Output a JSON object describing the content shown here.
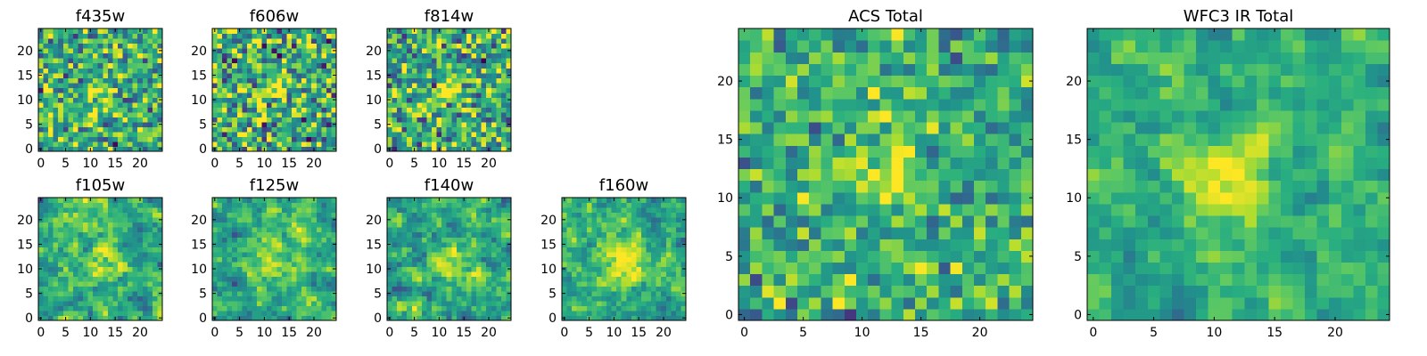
{
  "chart_data": [
    {
      "type": "heatmap",
      "title": "f435w",
      "xlim": [
        -0.5,
        24.5
      ],
      "ylim": [
        -0.5,
        24.5
      ],
      "xticks": [
        0,
        5,
        10,
        15,
        20
      ],
      "yticks": [
        0,
        5,
        10,
        15,
        20
      ],
      "xtick_labels": [
        "0",
        "5",
        "10",
        "15",
        "20"
      ],
      "ytick_labels": [
        "0",
        "5",
        "10",
        "15",
        "20"
      ],
      "grid_size": [
        25,
        25
      ],
      "source_peak": [
        12,
        12
      ],
      "colormap": "viridis",
      "seed": 11,
      "noise": 0.22,
      "smooth": 0,
      "peak": 0.25,
      "width": 2.0
    },
    {
      "type": "heatmap",
      "title": "f606w",
      "xlim": [
        -0.5,
        24.5
      ],
      "ylim": [
        -0.5,
        24.5
      ],
      "xticks": [
        0,
        5,
        10,
        15,
        20
      ],
      "yticks": [
        0,
        5,
        10,
        15,
        20
      ],
      "xtick_labels": [
        "0",
        "5",
        "10",
        "15",
        "20"
      ],
      "ytick_labels": [
        "0",
        "5",
        "10",
        "15",
        "20"
      ],
      "grid_size": [
        25,
        25
      ],
      "source_peak": [
        12,
        12
      ],
      "colormap": "viridis",
      "seed": 23,
      "noise": 0.26,
      "smooth": 0,
      "peak": 0.3,
      "width": 2.0
    },
    {
      "type": "heatmap",
      "title": "f814w",
      "xlim": [
        -0.5,
        24.5
      ],
      "ylim": [
        -0.5,
        24.5
      ],
      "xticks": [
        0,
        5,
        10,
        15,
        20
      ],
      "yticks": [
        0,
        5,
        10,
        15,
        20
      ],
      "xtick_labels": [
        "0",
        "5",
        "10",
        "15",
        "20"
      ],
      "ytick_labels": [
        "0",
        "5",
        "10",
        "15",
        "20"
      ],
      "grid_size": [
        25,
        25
      ],
      "source_peak": [
        12,
        12
      ],
      "colormap": "viridis",
      "seed": 37,
      "noise": 0.24,
      "smooth": 0,
      "peak": 0.4,
      "width": 1.8
    },
    {
      "type": "heatmap",
      "title": "f105w",
      "xlim": [
        -0.5,
        24.5
      ],
      "ylim": [
        -0.5,
        24.5
      ],
      "xticks": [
        0,
        5,
        10,
        15,
        20
      ],
      "yticks": [
        0,
        5,
        10,
        15,
        20
      ],
      "xtick_labels": [
        "0",
        "5",
        "10",
        "15",
        "20"
      ],
      "ytick_labels": [
        "0",
        "5",
        "10",
        "15",
        "20"
      ],
      "grid_size": [
        25,
        25
      ],
      "source_peak": [
        12,
        12
      ],
      "colormap": "viridis",
      "seed": 41,
      "noise": 0.28,
      "smooth": 1,
      "peak": 0.3,
      "width": 2.2
    },
    {
      "type": "heatmap",
      "title": "f125w",
      "xlim": [
        -0.5,
        24.5
      ],
      "ylim": [
        -0.5,
        24.5
      ],
      "xticks": [
        0,
        5,
        10,
        15,
        20
      ],
      "yticks": [
        0,
        5,
        10,
        15,
        20
      ],
      "xtick_labels": [
        "0",
        "5",
        "10",
        "15",
        "20"
      ],
      "ytick_labels": [
        "0",
        "5",
        "10",
        "15",
        "20"
      ],
      "grid_size": [
        25,
        25
      ],
      "source_peak": [
        12,
        12
      ],
      "colormap": "viridis",
      "seed": 53,
      "noise": 0.26,
      "smooth": 1,
      "peak": 0.3,
      "width": 3.0
    },
    {
      "type": "heatmap",
      "title": "f140w",
      "xlim": [
        -0.5,
        24.5
      ],
      "ylim": [
        -0.5,
        24.5
      ],
      "xticks": [
        0,
        5,
        10,
        15,
        20
      ],
      "yticks": [
        0,
        5,
        10,
        15,
        20
      ],
      "xtick_labels": [
        "0",
        "5",
        "10",
        "15",
        "20"
      ],
      "ytick_labels": [
        "0",
        "5",
        "10",
        "15",
        "20"
      ],
      "grid_size": [
        25,
        25
      ],
      "source_peak": [
        12,
        12
      ],
      "colormap": "viridis",
      "seed": 67,
      "noise": 0.28,
      "smooth": 1,
      "peak": 0.35,
      "width": 2.4
    },
    {
      "type": "heatmap",
      "title": "f160w",
      "xlim": [
        -0.5,
        24.5
      ],
      "ylim": [
        -0.5,
        24.5
      ],
      "xticks": [
        0,
        5,
        10,
        15,
        20
      ],
      "yticks": [
        0,
        5,
        10,
        15,
        20
      ],
      "xtick_labels": [
        "0",
        "5",
        "10",
        "15",
        "20"
      ],
      "ytick_labels": [
        "0",
        "5",
        "10",
        "15",
        "20"
      ],
      "grid_size": [
        25,
        25
      ],
      "source_peak": [
        12,
        11
      ],
      "colormap": "viridis",
      "seed": 79,
      "noise": 0.26,
      "smooth": 1,
      "peak": 0.4,
      "width": 3.0
    },
    {
      "type": "heatmap",
      "title": "ACS Total",
      "xlim": [
        -0.5,
        24.5
      ],
      "ylim": [
        -0.5,
        24.5
      ],
      "xticks": [
        0,
        5,
        10,
        15,
        20
      ],
      "yticks": [
        0,
        5,
        10,
        15,
        20
      ],
      "xtick_labels": [
        "0",
        "5",
        "10",
        "15",
        "20"
      ],
      "ytick_labels": [
        "0",
        "5",
        "10",
        "15",
        "20"
      ],
      "grid_size": [
        25,
        25
      ],
      "source_peak": [
        12,
        12
      ],
      "colormap": "viridis",
      "seed": 97,
      "noise": 0.16,
      "smooth": 0,
      "peak": 0.45,
      "width": 1.6
    },
    {
      "type": "heatmap",
      "title": "WFC3 IR Total",
      "xlim": [
        -0.5,
        24.5
      ],
      "ylim": [
        -0.5,
        24.5
      ],
      "xticks": [
        0,
        5,
        10,
        15,
        20
      ],
      "yticks": [
        0,
        5,
        10,
        15,
        20
      ],
      "xtick_labels": [
        "0",
        "5",
        "10",
        "15",
        "20"
      ],
      "ytick_labels": [
        "0",
        "5",
        "10",
        "15",
        "20"
      ],
      "grid_size": [
        25,
        25
      ],
      "source_peak": [
        12,
        12
      ],
      "colormap": "viridis",
      "seed": 113,
      "noise": 0.2,
      "smooth": 1,
      "peak": 0.45,
      "width": 2.4
    }
  ],
  "colormap_stops": [
    "#440154",
    "#472f7d",
    "#3b528b",
    "#2c728e",
    "#21918c",
    "#28ae80",
    "#5ec962",
    "#addc30",
    "#fde725"
  ]
}
